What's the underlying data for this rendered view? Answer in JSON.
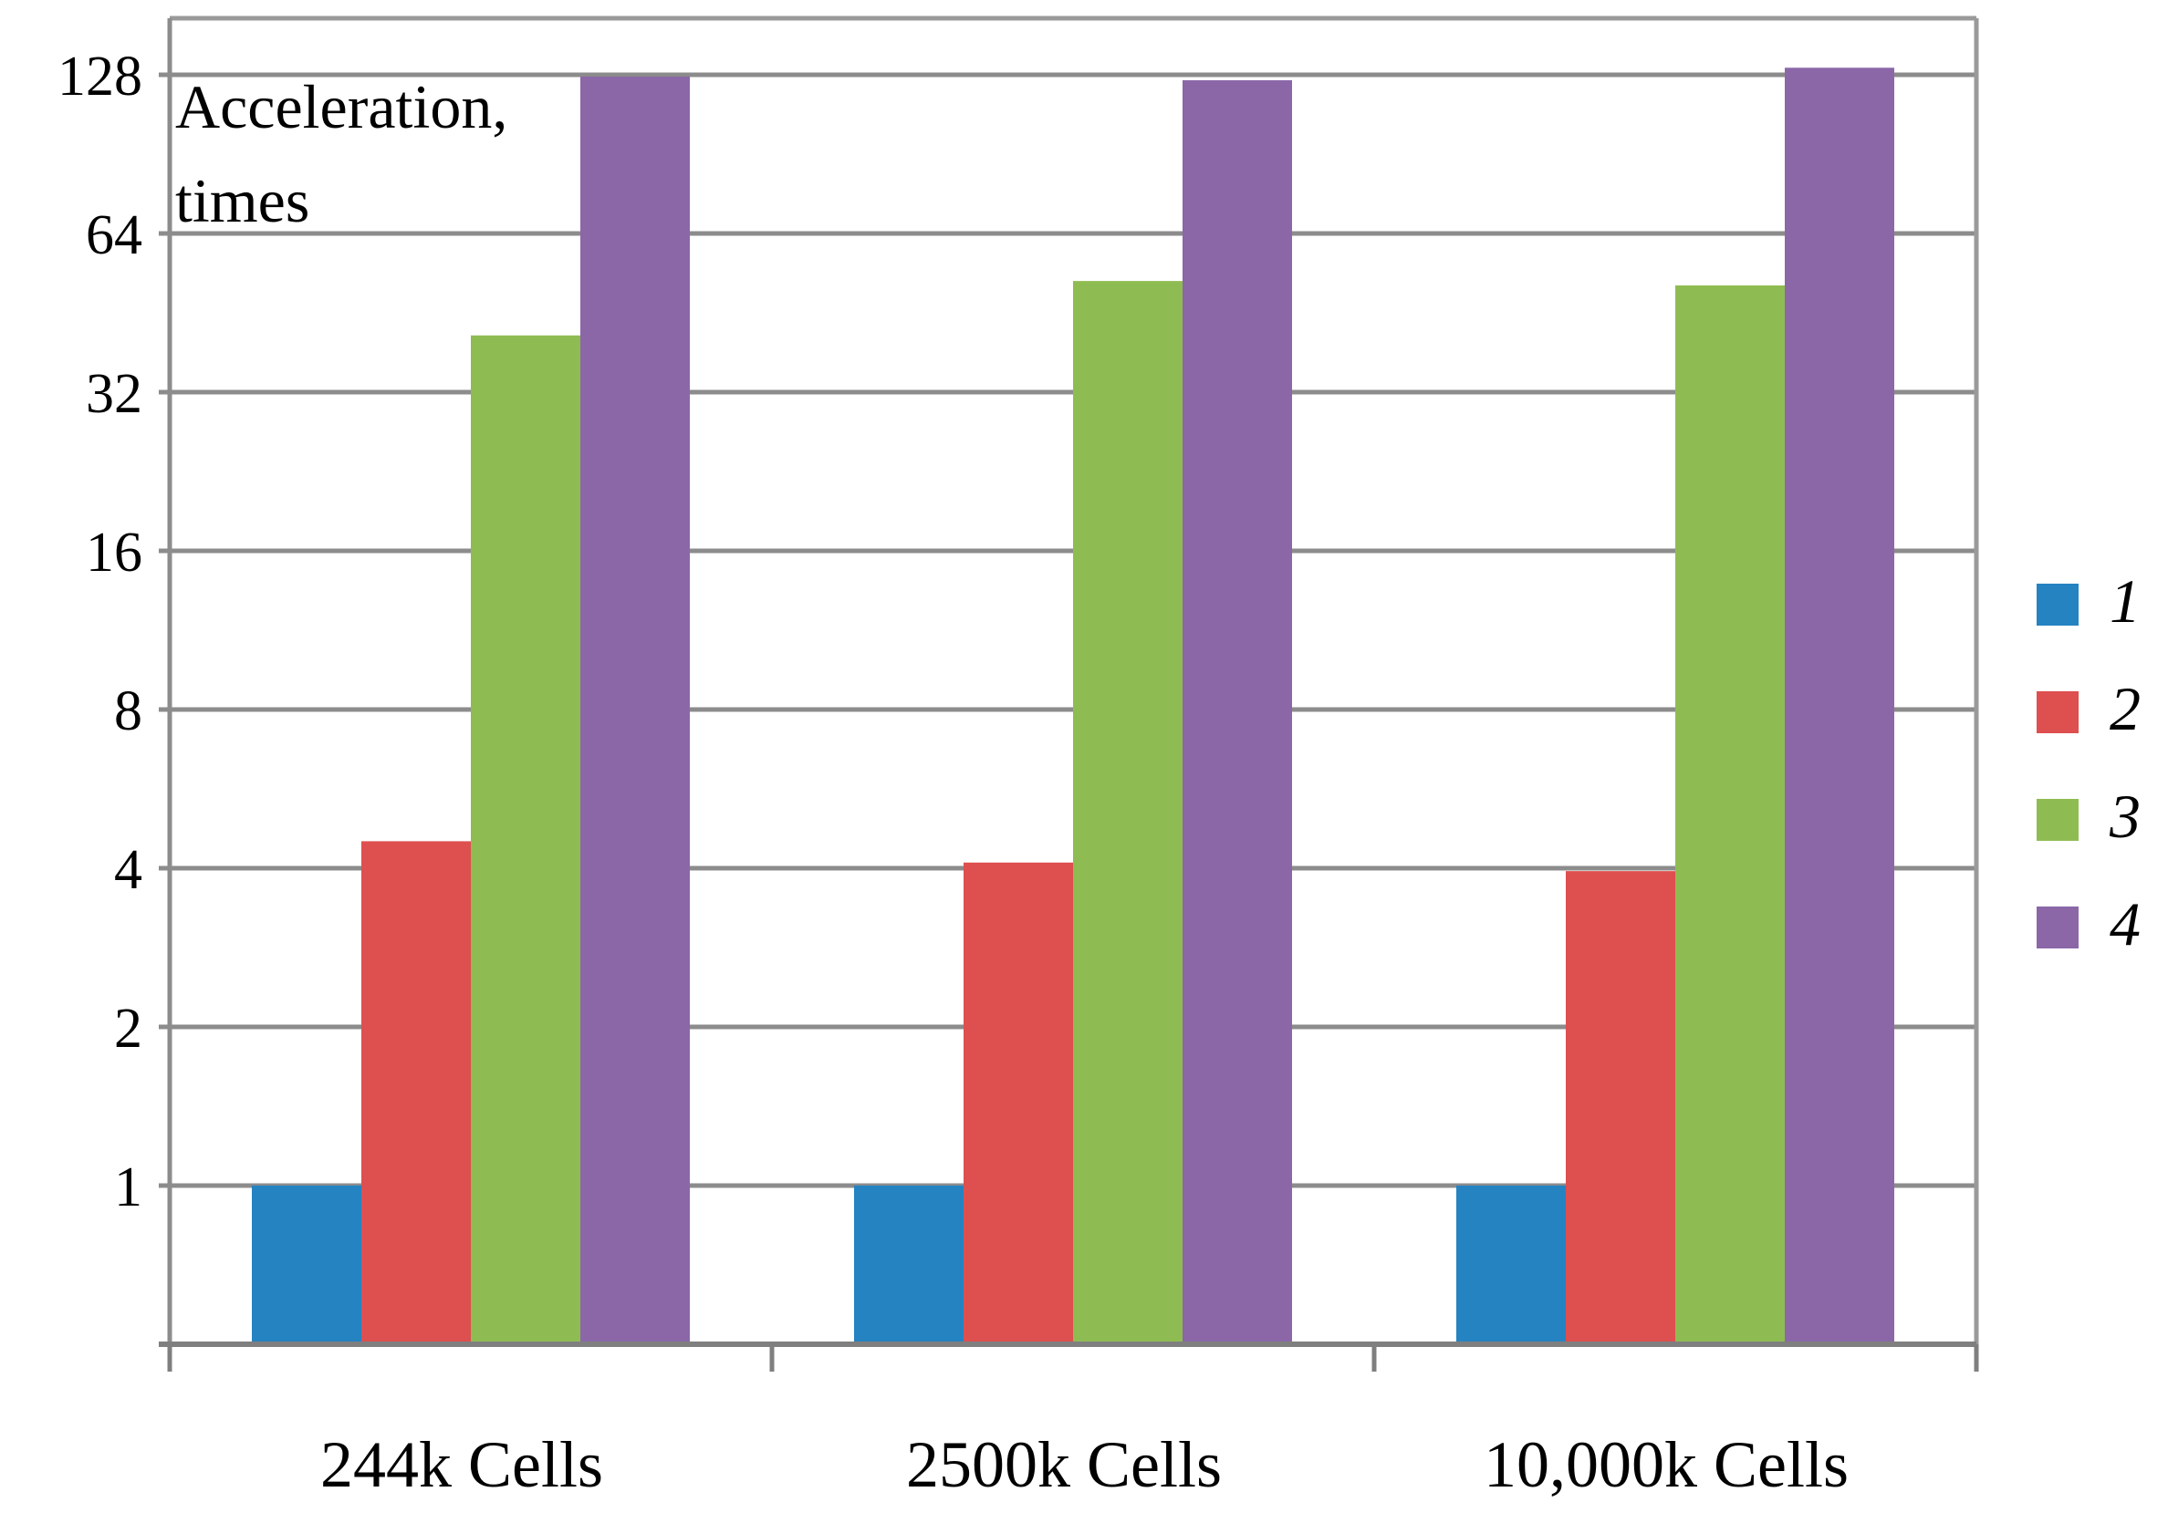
{
  "chart_data": {
    "type": "bar",
    "scale": "log2",
    "ylabel_lines": [
      "Acceleration,",
      "times"
    ],
    "xlabel": "",
    "ylim": [
      0.5,
      128
    ],
    "yticks": [
      1,
      2,
      4,
      8,
      16,
      32,
      64,
      128
    ],
    "ytick_labels": [
      "1",
      "2",
      "4",
      "8",
      "16",
      "32",
      "64",
      "128"
    ],
    "grid": true,
    "legend_position": "right",
    "categories": [
      "244k Cells",
      "2500k Cells",
      "10,000k Cells"
    ],
    "series": [
      {
        "name": "1",
        "color": "#2583C2",
        "values": [
          1,
          1,
          1
        ]
      },
      {
        "name": "2",
        "color": "#DE4F4F",
        "values": [
          4.5,
          4.1,
          3.95
        ]
      },
      {
        "name": "3",
        "color": "#8FBC52",
        "values": [
          41,
          52,
          51
        ]
      },
      {
        "name": "4",
        "color": "#8B67A8",
        "values": [
          127,
          125,
          132
        ]
      }
    ]
  }
}
